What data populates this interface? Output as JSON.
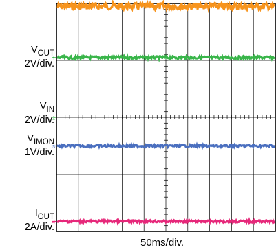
{
  "chart_data": {
    "type": "line",
    "title": "",
    "xlabel": "50ms/div.",
    "grid": true,
    "x_divisions": 10,
    "y_divisions": 8,
    "series": [
      {
        "name": "",
        "color": "#f7941d",
        "y_div": 7.9,
        "noise": 0.12,
        "marker": ""
      },
      {
        "name": "VOUT 2V/div.",
        "name_main": "V",
        "name_sub": "OUT",
        "scale": "2V/div.",
        "marker": "1",
        "color": "#39b54a",
        "y_div": 6.1,
        "noise": 0.05
      },
      {
        "name": "VIN 2V/div.",
        "name_main": "V",
        "name_sub": "IN",
        "scale": "2V/div.",
        "marker": "2",
        "color": "#39b54a",
        "y_div": 4.0,
        "noise": 0.0,
        "faint": true
      },
      {
        "name": "VIMON 1V/div.",
        "name_main": "V",
        "name_sub": "IMON",
        "scale": "1V/div.",
        "marker": "3",
        "color": "#4a6fbf",
        "y_div": 3.0,
        "noise": 0.04
      },
      {
        "name": "IOUT 2A/div.",
        "name_main": "I",
        "name_sub": "OUT",
        "scale": "2A/div.",
        "marker": "4",
        "color": "#e6287a",
        "y_div": 0.35,
        "noise": 0.04
      }
    ]
  }
}
